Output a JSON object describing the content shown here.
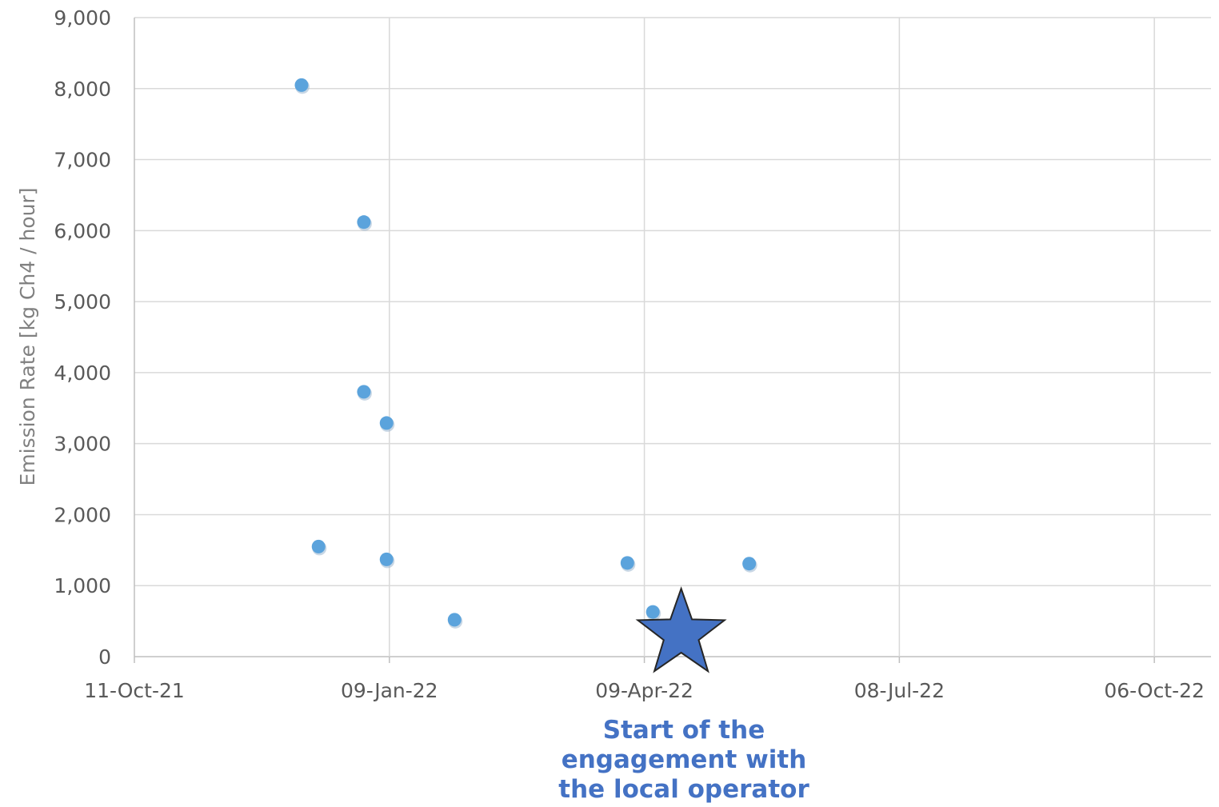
{
  "chart_data": {
    "type": "scatter",
    "ylabel": "Emission Rate [kg Ch4 / hour]",
    "xlabel": "",
    "x_ticks": [
      "11-Oct-21",
      "09-Jan-22",
      "09-Apr-22",
      "08-Jul-22",
      "06-Oct-22"
    ],
    "xlim": [
      "2021-10-11",
      "2022-10-26"
    ],
    "ylim": [
      0,
      9000
    ],
    "y_ticks": [
      "0",
      "1,000",
      "2,000",
      "3,000",
      "4,000",
      "5,000",
      "6,000",
      "7,000",
      "8,000",
      "9,000"
    ],
    "grid": true,
    "legend": "none",
    "marker_color": "#5ba3dc",
    "points": [
      {
        "x": "2021-12-09",
        "y": 8050
      },
      {
        "x": "2021-12-15",
        "y": 1550
      },
      {
        "x": "2021-12-31",
        "y": 6120
      },
      {
        "x": "2021-12-31",
        "y": 3730
      },
      {
        "x": "2022-01-08",
        "y": 3290
      },
      {
        "x": "2022-01-08",
        "y": 1370
      },
      {
        "x": "2022-02-01",
        "y": 520
      },
      {
        "x": "2022-04-03",
        "y": 1320
      },
      {
        "x": "2022-04-12",
        "y": 630
      },
      {
        "x": "2022-05-16",
        "y": 1310
      }
    ],
    "annotation": {
      "marker": "star",
      "color": "#4472c4",
      "x": "2022-04-22",
      "y": 450,
      "text": [
        "Start of the",
        "engagement with",
        "the local operator"
      ]
    }
  }
}
